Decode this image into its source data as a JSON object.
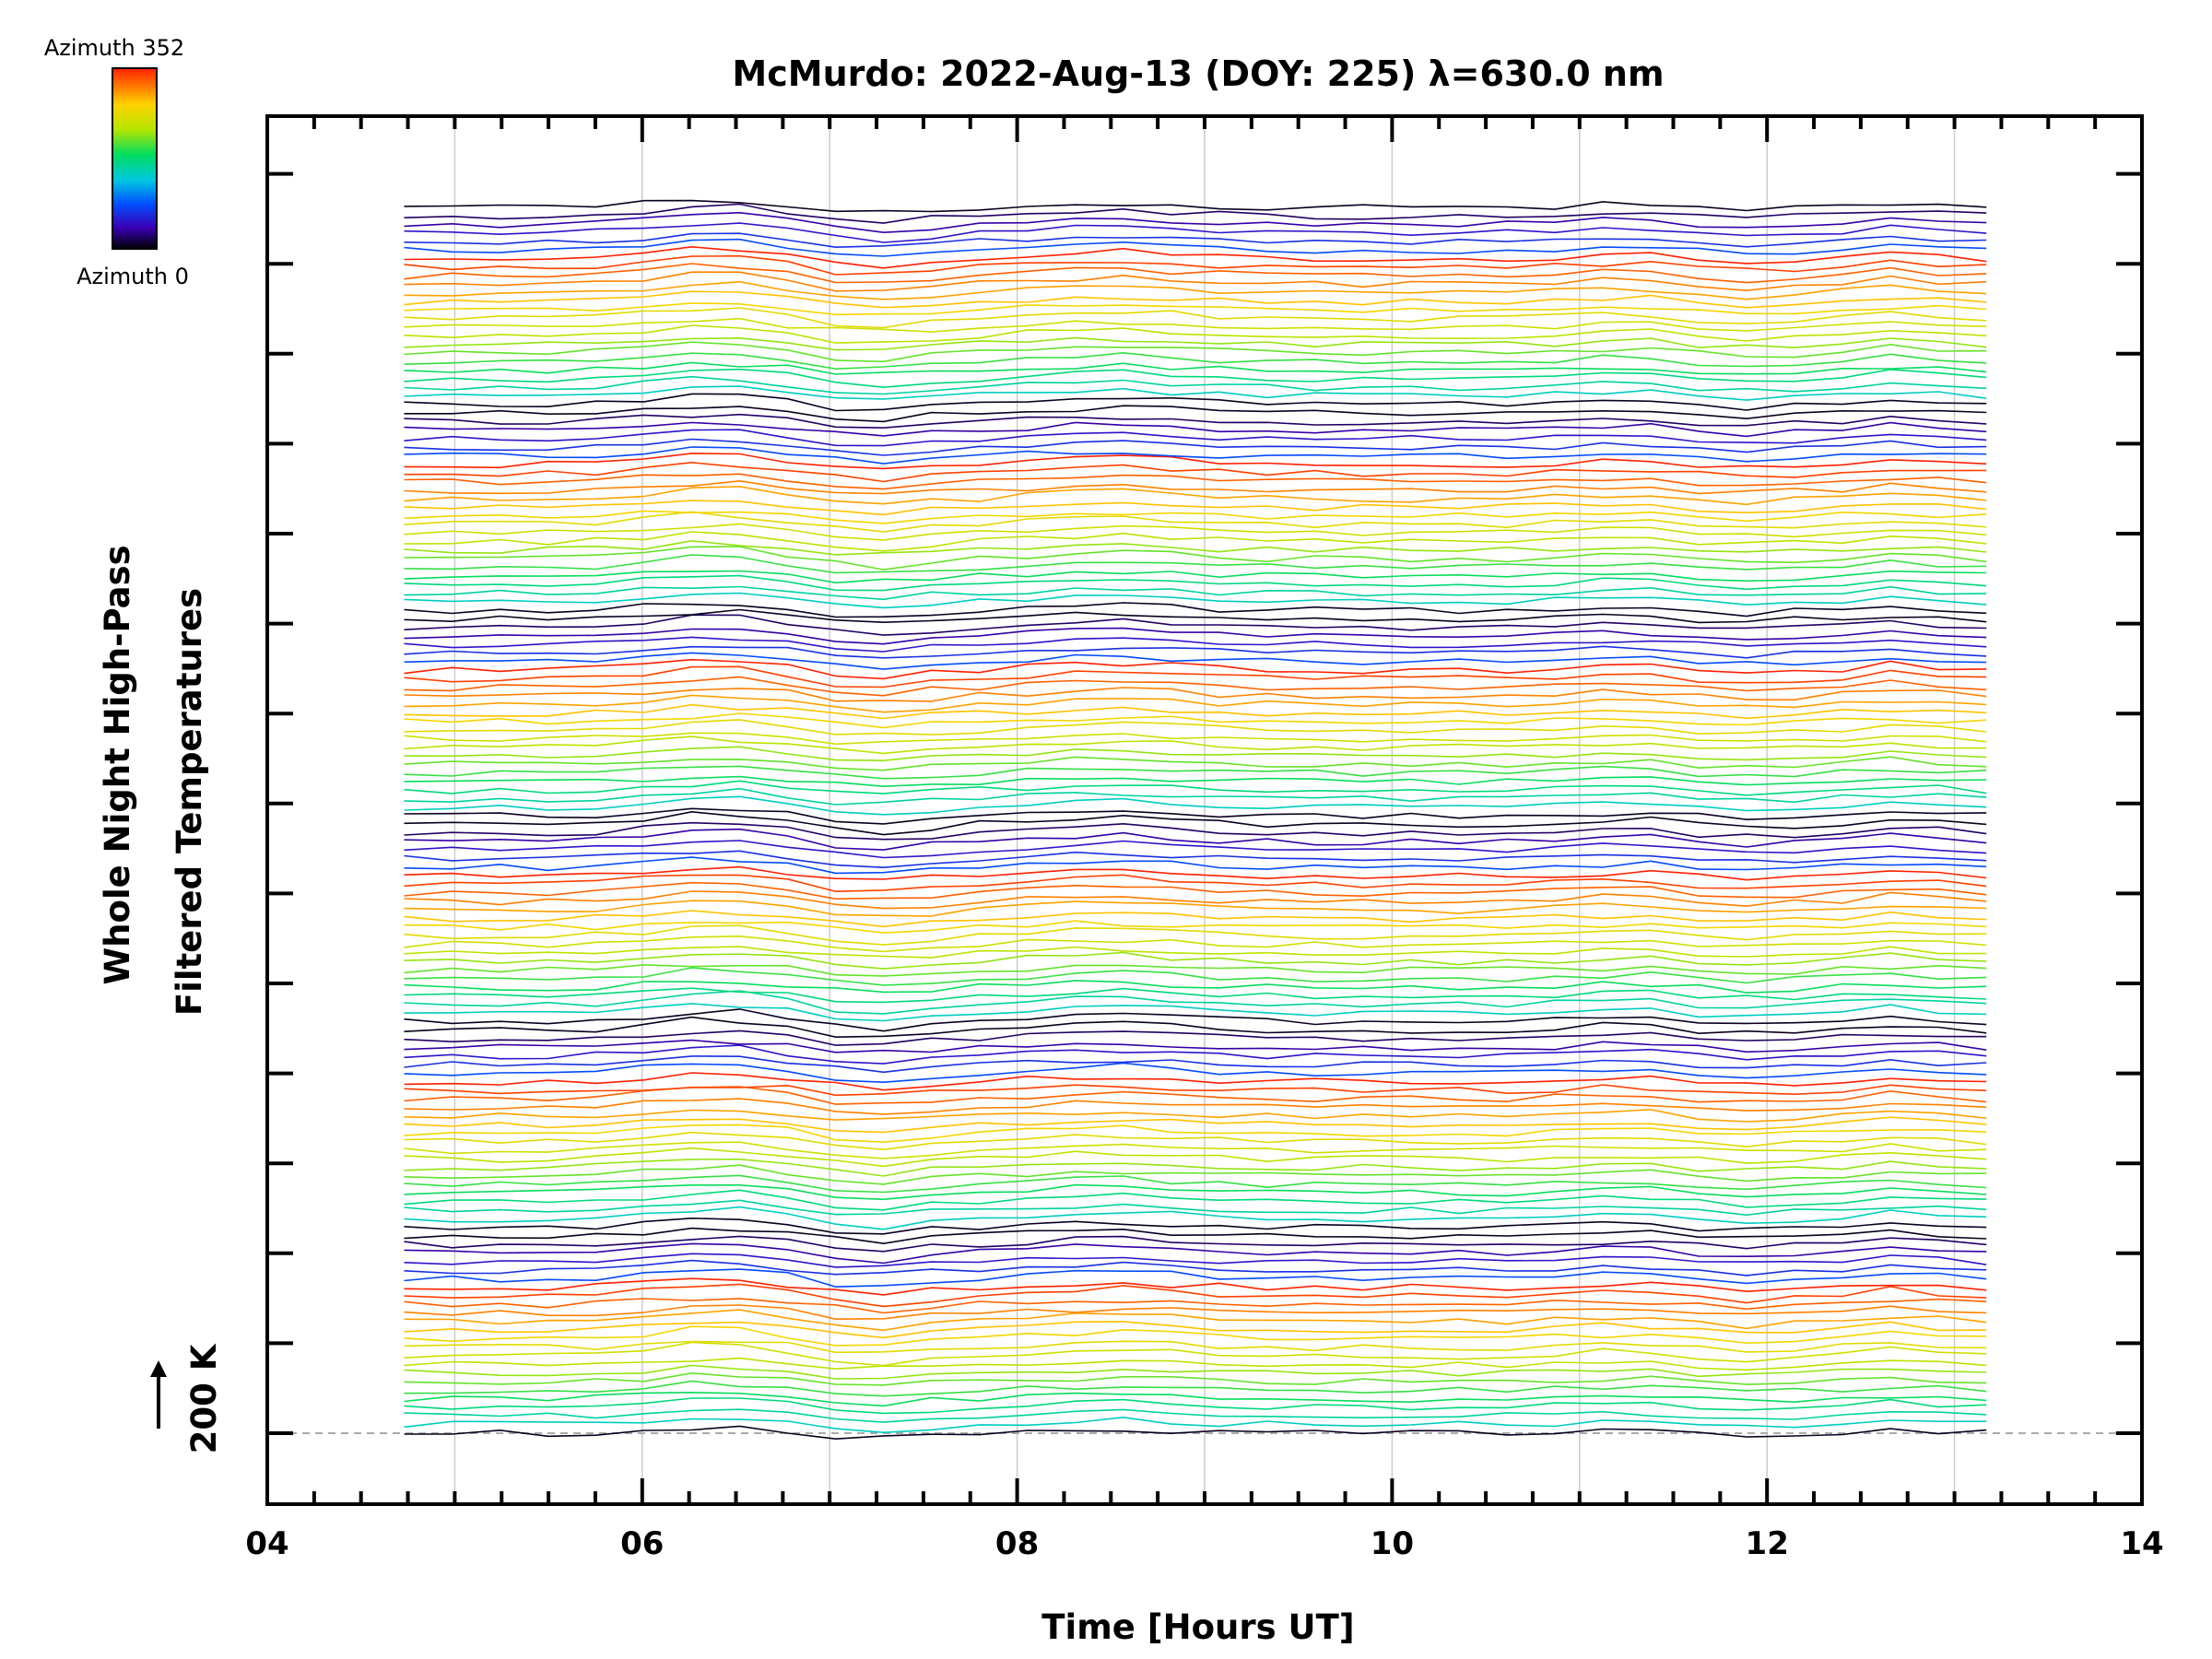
{
  "chart_data": {
    "type": "line",
    "title": "McMurdo: 2022-Aug-13 (DOY: 225) λ=630.0 nm",
    "xlabel": "Time [Hours UT]",
    "ylabel_lines": [
      "Whole Night High-Pass",
      "Filtered Temperatures"
    ],
    "xlim": [
      4,
      14
    ],
    "x_ticks": [
      4,
      6,
      8,
      10,
      12,
      14
    ],
    "x_tick_labels": [
      "04",
      "06",
      "08",
      "10",
      "12",
      "14"
    ],
    "x_minor_step": 0.25,
    "x_gridlines": [
      5,
      6,
      7,
      8,
      9,
      10,
      11,
      12,
      13
    ],
    "y_ticks_count": 15,
    "scale_bar": {
      "label": "200 K",
      "arrow": "up"
    },
    "baseline": "dashed",
    "colorbar": {
      "top_label": "Azimuth  352",
      "bottom_label": "Azimuth  0",
      "colormap": "rainbow",
      "stops": [
        "#000000",
        "#3a00b8",
        "#0050ff",
        "#00c8e0",
        "#00dc60",
        "#b4e600",
        "#ffd200",
        "#ff7800",
        "#ff2000"
      ]
    },
    "series_info": {
      "count": 144,
      "groups": 6,
      "per_group": 24,
      "azimuth_range": [
        0,
        352
      ],
      "azimuth_step": 15.3,
      "time_start": 4.73,
      "time_end": 13.17,
      "time_samples": 34
    }
  }
}
